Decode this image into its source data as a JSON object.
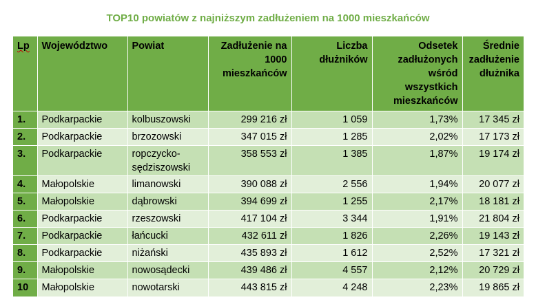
{
  "title": "TOP10 powiatów z najniższym zadłużeniem na 1000 mieszkańców",
  "headers": {
    "lp": "Lp",
    "wojewodztwo": "Województwo",
    "powiat": "Powiat",
    "zadluzenie": "Zadłużenie na 1000 mieszkańców",
    "dluznicy": "Liczba dłużników",
    "odsetek": "Odsetek zadłużonych wśród wszystkich mieszkańców",
    "srednie": "Średnie zadłużenie dłużnika"
  },
  "rows": [
    {
      "lp": "1.",
      "woj": "Podkarpackie",
      "powiat": "kolbuszowski",
      "zadl": "299 216 zł",
      "dluz": "1 059",
      "ods": "1,73%",
      "sred": "17 345 zł"
    },
    {
      "lp": "2.",
      "woj": "Podkarpackie",
      "powiat": "brzozowski",
      "zadl": "347 015 zł",
      "dluz": "1 285",
      "ods": "2,02%",
      "sred": "17 173 zł"
    },
    {
      "lp": "3.",
      "woj": "Podkarpackie",
      "powiat": "ropczycko-sędziszowski",
      "zadl": "358 553 zł",
      "dluz": "1 385",
      "ods": "1,87%",
      "sred": "19 174 zł"
    },
    {
      "lp": "4.",
      "woj": "Małopolskie",
      "powiat": "limanowski",
      "zadl": "390 088 zł",
      "dluz": "2 556",
      "ods": "1,94%",
      "sred": "20 077 zł"
    },
    {
      "lp": "5.",
      "woj": "Małopolskie",
      "powiat": "dąbrowski",
      "zadl": "394 699 zł",
      "dluz": "1 255",
      "ods": "2,17%",
      "sred": "18 181 zł"
    },
    {
      "lp": "6.",
      "woj": "Podkarpackie",
      "powiat": "rzeszowski",
      "zadl": "417 104 zł",
      "dluz": "3 344",
      "ods": "1,91%",
      "sred": "21 804 zł"
    },
    {
      "lp": "7.",
      "woj": "Podkarpackie",
      "powiat": "łańcucki",
      "zadl": "432 611 zł",
      "dluz": "1 826",
      "ods": "2,26%",
      "sred": "19 143 zł"
    },
    {
      "lp": "8.",
      "woj": "Podkarpackie",
      "powiat": "niżański",
      "zadl": "435 893 zł",
      "dluz": "1 612",
      "ods": "2,52%",
      "sred": "17 321 zł"
    },
    {
      "lp": "9.",
      "woj": "Małopolskie",
      "powiat": "nowosądecki",
      "zadl": "439 486 zł",
      "dluz": "4 557",
      "ods": "2,12%",
      "sred": "20 729 zł"
    },
    {
      "lp": "10",
      "woj": "Małopolskie",
      "powiat": "nowotarski",
      "zadl": "443 815 zł",
      "dluz": "4 248",
      "ods": "2,23%",
      "sred": "19 865 zł"
    }
  ],
  "colors": {
    "header_bg": "#70ad47",
    "row_dark": "#c5e0b4",
    "row_light": "#e2efd9",
    "title": "#70ad47"
  }
}
